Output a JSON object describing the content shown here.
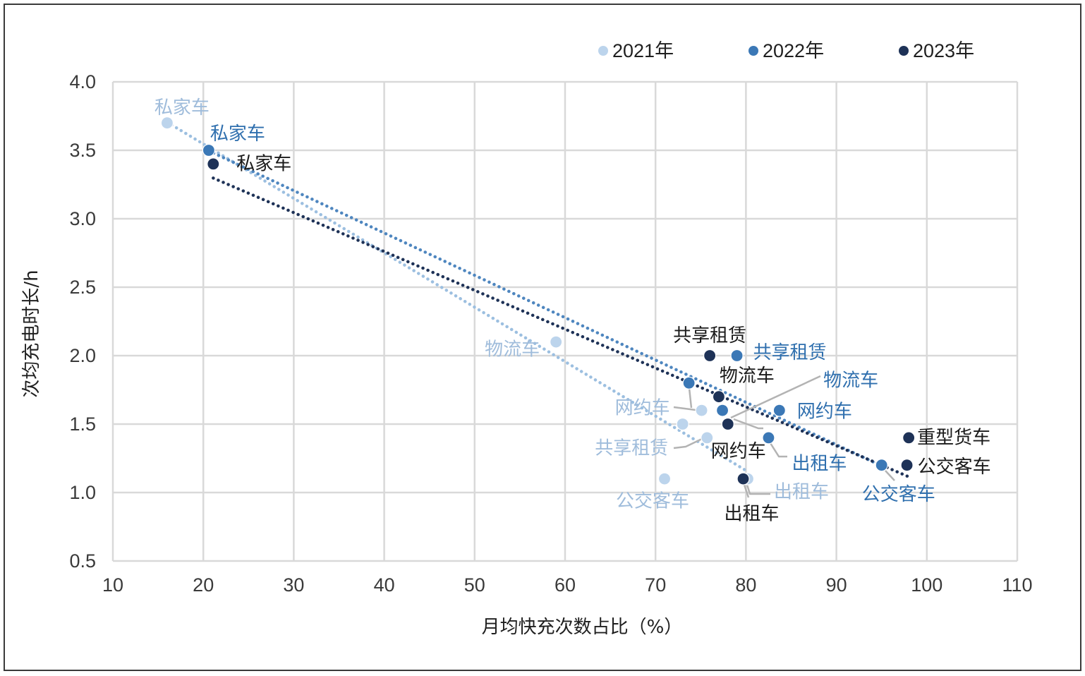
{
  "chart_data": {
    "type": "scatter",
    "xlabel": "月均快充次数占比（%）",
    "ylabel": "次均充电时长/h",
    "xlim": [
      10,
      110
    ],
    "ylim": [
      0.5,
      4.0
    ],
    "xticks": [
      "10",
      "20",
      "30",
      "40",
      "50",
      "60",
      "70",
      "80",
      "90",
      "100",
      "110"
    ],
    "yticks": [
      "0.5",
      "1.0",
      "1.5",
      "2.0",
      "2.5",
      "3.0",
      "3.5",
      "4.0"
    ],
    "grid": true,
    "legend": "top-right",
    "trendline": "linear",
    "series": [
      {
        "name": "2021年",
        "color": "#bcd4ec",
        "line_color": "#9cbfe0",
        "label_color": "#9fbcdb",
        "points": [
          {
            "label": "私家车",
            "x": 16,
            "y": 3.7
          },
          {
            "label": "物流车",
            "x": 59,
            "y": 2.1
          },
          {
            "label": "网约车",
            "x": 75.1,
            "y": 1.6
          },
          {
            "label": "",
            "x": 73,
            "y": 1.5
          },
          {
            "label": "共享租赁",
            "x": 75.7,
            "y": 1.4
          },
          {
            "label": "公交客车",
            "x": 71,
            "y": 1.1
          },
          {
            "label": "出租车",
            "x": 80.2,
            "y": 1.1
          }
        ]
      },
      {
        "name": "2022年",
        "color": "#3b78b6",
        "line_color": "#4e86bf",
        "label_color": "#2f6fae",
        "points": [
          {
            "label": "私家车",
            "x": 20.6,
            "y": 3.5
          },
          {
            "label": "共享租赁",
            "x": 79,
            "y": 2.0
          },
          {
            "label": "",
            "x": 73.7,
            "y": 1.8
          },
          {
            "label": "物流车",
            "x": 77.4,
            "y": 1.6
          },
          {
            "label": "网约车",
            "x": 83.7,
            "y": 1.6
          },
          {
            "label": "出租车",
            "x": 82.5,
            "y": 1.4
          },
          {
            "label": "公交客车",
            "x": 95,
            "y": 1.2
          }
        ]
      },
      {
        "name": "2023年",
        "color": "#1e3257",
        "line_color": "#1e3257",
        "label_color": "#1a1a1a",
        "points": [
          {
            "label": "私家车",
            "x": 21.1,
            "y": 3.4
          },
          {
            "label": "共享租赁",
            "x": 76,
            "y": 2.0
          },
          {
            "label": "物流车",
            "x": 77,
            "y": 1.7
          },
          {
            "label": "网约车",
            "x": 78,
            "y": 1.5
          },
          {
            "label": "出租车",
            "x": 79.7,
            "y": 1.1
          },
          {
            "label": "公交客车",
            "x": 97.8,
            "y": 1.2
          },
          {
            "label": "重型货车",
            "x": 98,
            "y": 1.4
          }
        ]
      }
    ]
  }
}
